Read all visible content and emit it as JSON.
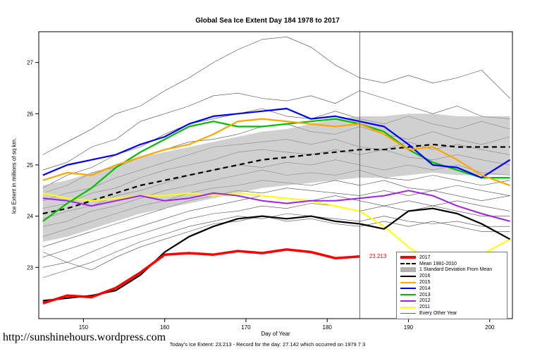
{
  "page": {
    "url": "http://sunshinehours.wordpress.com",
    "caption": "Today's Ice Extent: 23.213  - Record for the day: 27.142 which occurred on 1979 7 3"
  },
  "chart_data": {
    "type": "line",
    "title": "Global Sea Ice Extent Day 184 1978 to 2017",
    "xlabel": "Day of Year",
    "ylabel": "Ice Extent in millions of sq km.",
    "xlim": [
      144.5,
      202.8
    ],
    "ylim": [
      22.0,
      27.6
    ],
    "xticks": [
      150,
      160,
      170,
      180,
      190,
      200
    ],
    "yticks": [
      23,
      24,
      25,
      26,
      27
    ],
    "grid": false,
    "legend_position": "bottom-right",
    "vline_x": 184,
    "annotation": {
      "x": 185,
      "y": 23.213,
      "text": "23.213",
      "color": "#FF0000"
    },
    "x": [
      145,
      148,
      151,
      154,
      157,
      160,
      163,
      166,
      169,
      172,
      175,
      178,
      181,
      184,
      187,
      190,
      193,
      196,
      199,
      202.5
    ],
    "band": {
      "name": "1 Standard Deviation From Mean",
      "color": "#b0b0b0",
      "upper": [
        24.6,
        24.7,
        24.85,
        25.0,
        25.15,
        25.25,
        25.35,
        25.45,
        25.55,
        25.65,
        25.7,
        25.8,
        25.9,
        25.95,
        25.95,
        26.0,
        26.0,
        25.95,
        25.95,
        25.95
      ],
      "lower": [
        23.5,
        23.6,
        23.75,
        23.9,
        24.05,
        24.15,
        24.25,
        24.35,
        24.45,
        24.55,
        24.6,
        24.65,
        24.7,
        24.75,
        24.75,
        24.8,
        24.85,
        24.8,
        24.8,
        24.8
      ]
    },
    "series": [
      {
        "name": "Mean 1981-2010",
        "color": "#000000",
        "width": 2.2,
        "dash": "7,5",
        "values": [
          24.05,
          24.15,
          24.3,
          24.45,
          24.6,
          24.7,
          24.8,
          24.9,
          25.0,
          25.1,
          25.15,
          25.2,
          25.25,
          25.3,
          25.3,
          25.35,
          25.4,
          25.35,
          25.35,
          25.35
        ]
      },
      {
        "name": "2011",
        "color": "#FFFF00",
        "width": 2,
        "values": [
          24.45,
          24.35,
          24.3,
          24.35,
          24.4,
          24.4,
          24.45,
          24.4,
          24.45,
          24.4,
          24.35,
          24.3,
          24.2,
          24.1,
          23.8,
          23.4,
          23.1,
          23.15,
          23.25,
          23.55
        ]
      },
      {
        "name": "2012",
        "color": "#A020F0",
        "width": 2,
        "values": [
          24.35,
          24.3,
          24.2,
          24.3,
          24.4,
          24.3,
          24.35,
          24.45,
          24.4,
          24.3,
          24.25,
          24.3,
          24.3,
          24.35,
          24.4,
          24.5,
          24.4,
          24.2,
          24.05,
          23.9
        ]
      },
      {
        "name": "2013",
        "color": "#00C000",
        "width": 2.2,
        "values": [
          23.9,
          24.25,
          24.55,
          24.95,
          25.25,
          25.5,
          25.75,
          25.85,
          25.75,
          25.75,
          25.8,
          25.85,
          25.9,
          25.8,
          25.65,
          25.3,
          25.05,
          24.9,
          24.75,
          24.75
        ]
      },
      {
        "name": "2014",
        "color": "#0000FF",
        "width": 2.2,
        "values": [
          24.8,
          25.0,
          25.1,
          25.2,
          25.4,
          25.55,
          25.8,
          25.95,
          26.0,
          26.05,
          26.1,
          25.9,
          25.95,
          25.85,
          25.75,
          25.4,
          25.0,
          24.95,
          24.75,
          25.1
        ]
      },
      {
        "name": "2015",
        "color": "#FFA500",
        "width": 2.2,
        "values": [
          24.7,
          24.85,
          24.8,
          25.0,
          25.15,
          25.3,
          25.4,
          25.6,
          25.85,
          25.9,
          25.85,
          25.8,
          25.75,
          25.8,
          25.6,
          25.3,
          25.35,
          25.1,
          24.8,
          24.6
        ]
      },
      {
        "name": "2016",
        "color": "#000000",
        "width": 2.2,
        "values": [
          22.35,
          22.4,
          22.45,
          22.55,
          22.85,
          23.3,
          23.6,
          23.8,
          23.95,
          24.0,
          23.95,
          24.0,
          23.9,
          23.85,
          23.75,
          24.1,
          24.15,
          24.05,
          23.85,
          23.55
        ]
      },
      {
        "name": "2017",
        "color": "#FF0000",
        "width": 3.5,
        "values": [
          22.3,
          22.45,
          22.42,
          22.6,
          22.9,
          23.25,
          23.28,
          23.25,
          23.32,
          23.28,
          23.35,
          23.3,
          23.18,
          23.213,
          null,
          null,
          null,
          null,
          null,
          null
        ]
      }
    ],
    "other_years": {
      "name": "Every Other Year",
      "color": "#4a4a4a",
      "width": 0.6,
      "lines": [
        [
          25.2,
          25.45,
          25.7,
          26.0,
          26.15,
          26.45,
          26.7,
          27.0,
          27.25,
          27.45,
          27.5,
          27.3,
          26.95,
          26.7,
          26.6,
          26.75,
          26.6,
          26.7,
          26.85,
          26.3
        ],
        [
          24.9,
          25.05,
          25.35,
          25.5,
          25.85,
          26.0,
          26.15,
          26.35,
          26.4,
          26.3,
          26.25,
          26.35,
          26.2,
          26.45,
          26.3,
          26.15,
          26.0,
          26.15,
          25.95,
          25.9
        ],
        [
          24.55,
          24.8,
          24.95,
          25.2,
          25.35,
          25.6,
          25.8,
          25.9,
          26.0,
          26.1,
          25.95,
          25.9,
          26.05,
          25.9,
          25.8,
          25.95,
          25.8,
          25.7,
          25.85,
          25.7
        ],
        [
          24.45,
          24.6,
          24.85,
          24.95,
          25.15,
          25.3,
          25.45,
          25.5,
          25.6,
          25.75,
          25.8,
          25.65,
          25.6,
          25.75,
          25.6,
          25.5,
          25.65,
          25.5,
          25.4,
          25.55
        ],
        [
          24.3,
          24.45,
          24.55,
          24.75,
          24.9,
          25.05,
          25.2,
          25.35,
          25.4,
          25.45,
          25.5,
          25.4,
          25.5,
          25.35,
          25.3,
          25.45,
          25.3,
          25.4,
          25.3,
          25.2
        ],
        [
          24.15,
          24.25,
          24.45,
          24.55,
          24.75,
          24.9,
          25.0,
          25.1,
          25.25,
          25.3,
          25.25,
          25.2,
          25.3,
          25.2,
          25.3,
          25.15,
          25.1,
          25.2,
          25.1,
          25.0
        ],
        [
          23.95,
          24.1,
          24.2,
          24.4,
          24.5,
          24.65,
          24.8,
          24.9,
          25.0,
          24.95,
          25.05,
          25.0,
          25.1,
          25.0,
          24.9,
          25.0,
          24.9,
          25.0,
          24.85,
          24.8
        ],
        [
          23.8,
          23.9,
          24.1,
          24.2,
          24.35,
          24.5,
          24.6,
          24.7,
          24.8,
          24.9,
          24.8,
          24.85,
          24.8,
          24.9,
          24.75,
          24.7,
          24.8,
          24.7,
          24.6,
          24.7
        ],
        [
          23.6,
          23.75,
          23.9,
          24.05,
          24.2,
          24.3,
          24.45,
          24.55,
          24.6,
          24.7,
          24.65,
          24.6,
          24.7,
          24.6,
          24.7,
          24.55,
          24.5,
          24.6,
          24.5,
          24.4
        ],
        [
          23.4,
          23.55,
          23.7,
          23.85,
          24.0,
          24.15,
          24.3,
          24.4,
          24.5,
          24.45,
          24.55,
          24.5,
          24.45,
          24.4,
          24.5,
          24.4,
          24.5,
          24.4,
          24.3,
          24.4
        ],
        [
          23.2,
          23.35,
          23.5,
          23.65,
          23.8,
          23.95,
          24.1,
          24.2,
          24.3,
          24.4,
          24.35,
          24.3,
          24.4,
          24.3,
          24.2,
          24.3,
          24.2,
          24.3,
          24.2,
          24.1
        ],
        [
          23.0,
          23.1,
          23.3,
          23.5,
          23.65,
          23.8,
          23.95,
          24.05,
          24.1,
          24.2,
          24.15,
          24.25,
          24.2,
          24.1,
          24.2,
          24.1,
          24.2,
          24.1,
          24.0,
          24.0
        ],
        [
          22.8,
          22.95,
          23.1,
          23.3,
          23.5,
          23.65,
          23.8,
          23.9,
          24.0,
          23.95,
          24.05,
          24.0,
          23.95,
          23.9,
          24.0,
          23.9,
          23.85,
          23.9,
          23.8,
          23.8
        ],
        [
          23.3,
          23.1,
          22.95,
          23.2,
          23.4,
          23.55,
          23.7,
          23.85,
          23.9,
          24.0,
          23.9,
          23.95,
          23.85,
          23.8,
          23.9,
          23.8,
          23.9,
          23.8,
          23.7,
          23.7
        ]
      ]
    },
    "legend": [
      {
        "label": "2017",
        "color": "#FF0000",
        "lw": 4
      },
      {
        "label": "Mean 1981-2010",
        "color": "#000000",
        "lw": 2,
        "dash": true
      },
      {
        "label": "1 Standard Deviation From Mean",
        "color": "#b0b0b0",
        "box": true
      },
      {
        "label": "2016",
        "color": "#000000",
        "lw": 2
      },
      {
        "label": "2015",
        "color": "#FFA500",
        "lw": 2
      },
      {
        "label": "2014",
        "color": "#0000FF",
        "lw": 2
      },
      {
        "label": "2013",
        "color": "#00C000",
        "lw": 2
      },
      {
        "label": "2012",
        "color": "#A020F0",
        "lw": 2
      },
      {
        "label": "2011",
        "color": "#FFFF00",
        "lw": 2
      },
      {
        "label": "Every Other Year",
        "color": "#666666",
        "lw": 1
      }
    ]
  }
}
